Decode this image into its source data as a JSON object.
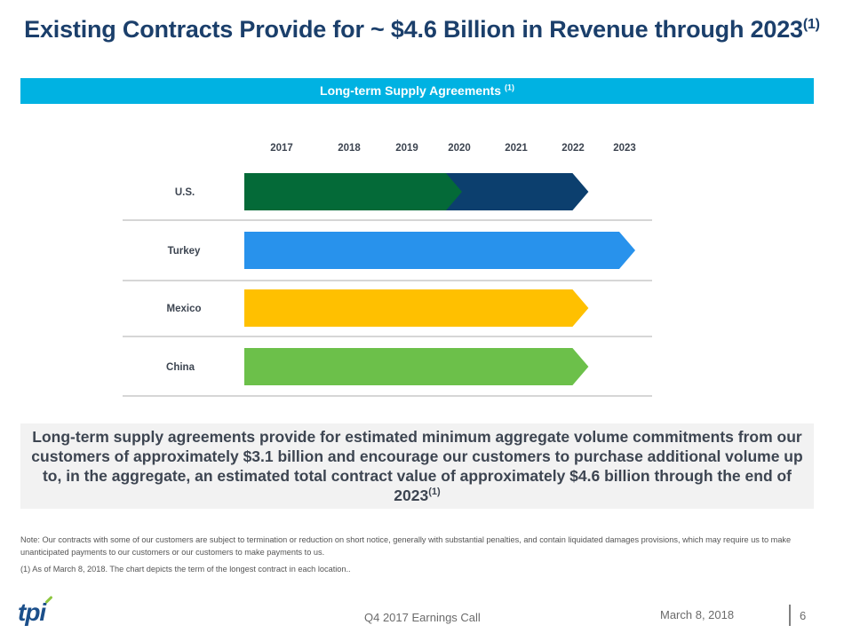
{
  "slide": {
    "title": "Existing Contracts Provide for ~ $4.6 Billion in Revenue through 2023",
    "title_sup": "(1)",
    "banner": "Long-term Supply Agreements",
    "banner_sup": "(1)",
    "summary": "Long-term supply agreements provide for estimated minimum aggregate volume commitments from our customers of approximately $3.1 billion and encourage our customers to purchase additional volume up to, in the aggregate, an estimated total contract value of approximately $4.6 billion through the end of 2023",
    "summary_sup": "(1)",
    "note": "Note: Our contracts with some of our customers are subject to termination or reduction on short notice, generally with substantial penalties, and contain liquidated damages provisions, which may require us to make unanticipated payments to our customers or our customers to make payments to us.",
    "footnote": "(1)  As of March 8, 2018. The chart depicts the term of the longest contract in each location..",
    "footer": {
      "logo": "tpi",
      "event": "Q4 2017 Earnings Call",
      "date": "March 8, 2018",
      "page": "6"
    }
  },
  "chart_data": {
    "type": "bar",
    "orientation": "horizontal-timeline",
    "title": "Long-term Supply Agreements (1)",
    "x_ticks": [
      "2017",
      "2018",
      "2019",
      "2020",
      "2021",
      "2022",
      "2023"
    ],
    "categories": [
      "U.S.",
      "Turkey",
      "Mexico",
      "China"
    ],
    "series": [
      {
        "location": "U.S.",
        "segments": [
          {
            "start": 2017.0,
            "end": 2020.0,
            "color": "#046a38"
          },
          {
            "start": 2020.0,
            "end": 2022.3,
            "color": "#0c3f6e"
          }
        ]
      },
      {
        "location": "Turkey",
        "segments": [
          {
            "start": 2017.0,
            "end": 2023.2,
            "color": "#2892ec"
          }
        ]
      },
      {
        "location": "Mexico",
        "segments": [
          {
            "start": 2017.0,
            "end": 2022.3,
            "color": "#ffc000"
          }
        ]
      },
      {
        "location": "China",
        "segments": [
          {
            "start": 2017.0,
            "end": 2022.3,
            "color": "#6cc04a"
          }
        ]
      }
    ],
    "grid": false,
    "legend": "none"
  }
}
